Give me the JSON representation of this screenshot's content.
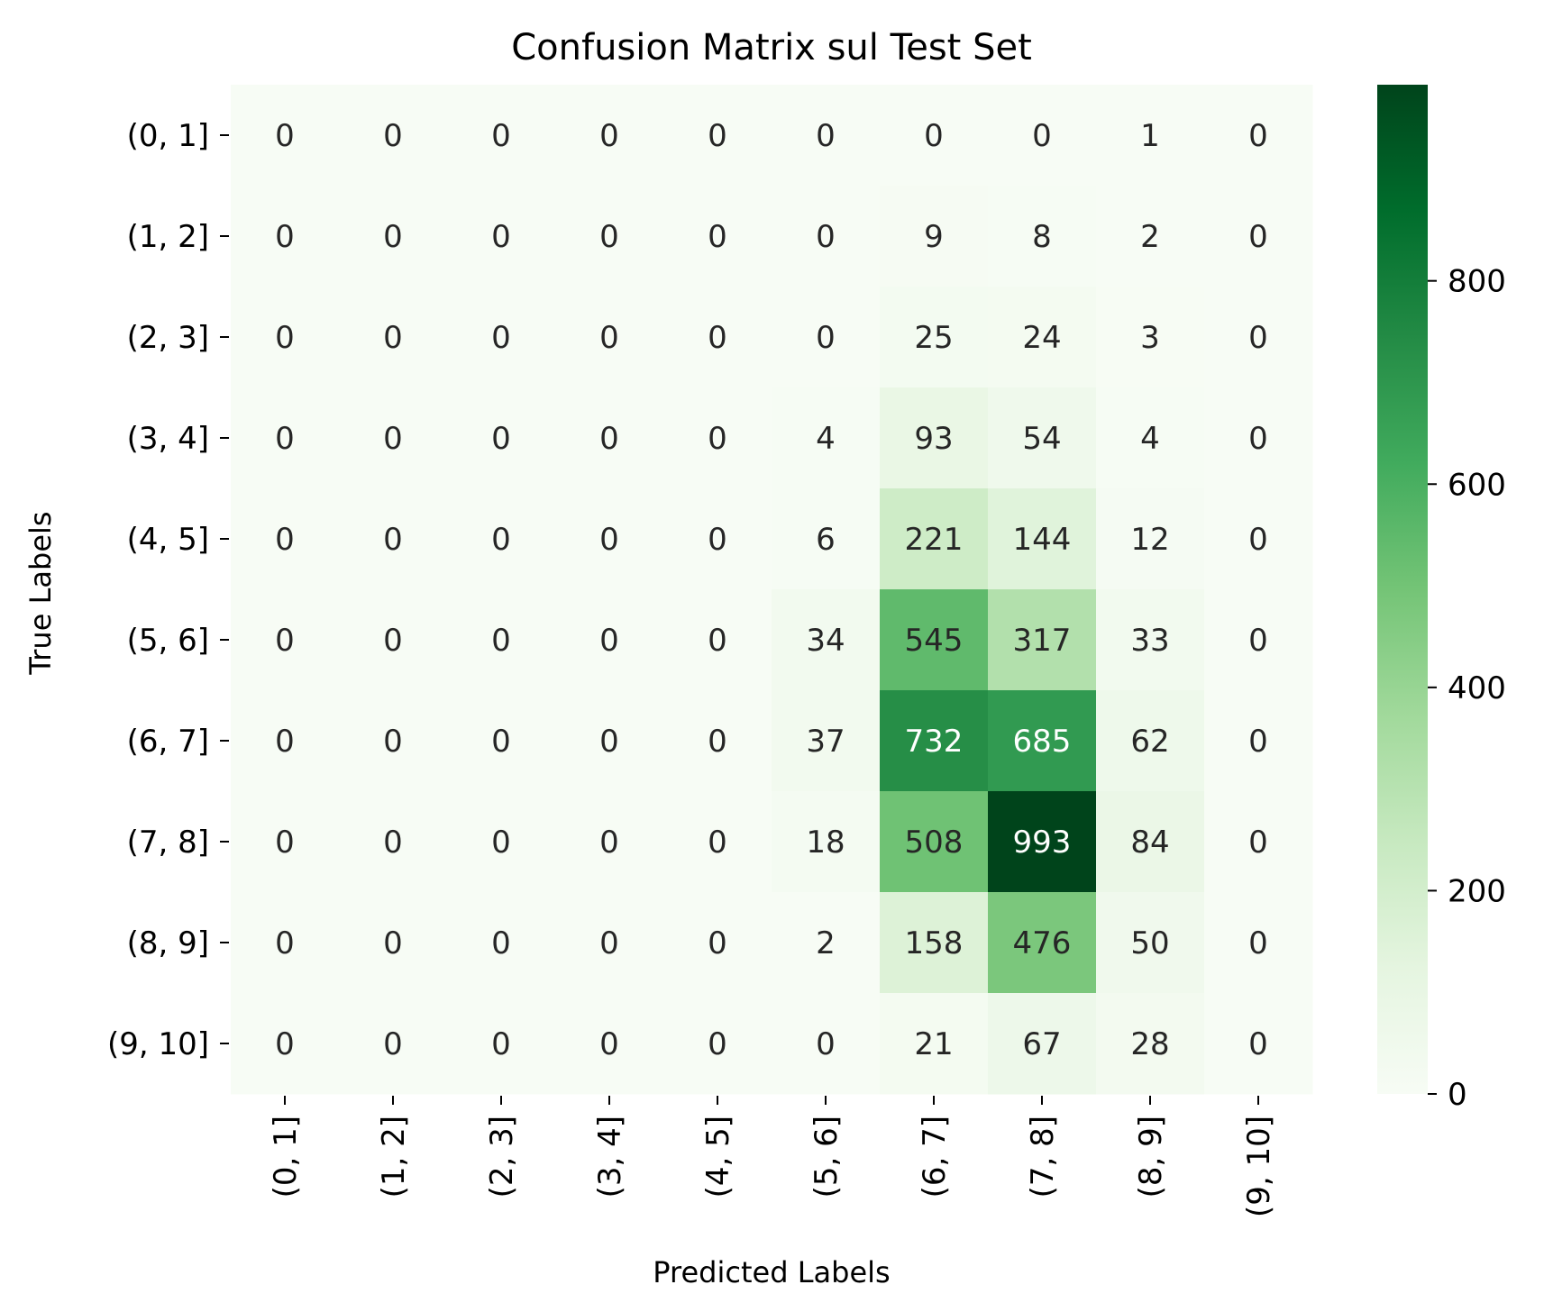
{
  "chart_data": {
    "type": "heatmap",
    "title": "Confusion Matrix sul Test Set",
    "xlabel": "Predicted Labels",
    "ylabel": "True Labels",
    "x_categories": [
      "(0, 1]",
      "(1, 2]",
      "(2, 3]",
      "(3, 4]",
      "(4, 5]",
      "(5, 6]",
      "(6, 7]",
      "(7, 8]",
      "(8, 9]",
      "(9, 10]"
    ],
    "y_categories": [
      "(0, 1]",
      "(1, 2]",
      "(2, 3]",
      "(3, 4]",
      "(4, 5]",
      "(5, 6]",
      "(6, 7]",
      "(7, 8]",
      "(8, 9]",
      "(9, 10]"
    ],
    "values": [
      [
        0,
        0,
        0,
        0,
        0,
        0,
        0,
        0,
        1,
        0
      ],
      [
        0,
        0,
        0,
        0,
        0,
        0,
        9,
        8,
        2,
        0
      ],
      [
        0,
        0,
        0,
        0,
        0,
        0,
        25,
        24,
        3,
        0
      ],
      [
        0,
        0,
        0,
        0,
        0,
        4,
        93,
        54,
        4,
        0
      ],
      [
        0,
        0,
        0,
        0,
        0,
        6,
        221,
        144,
        12,
        0
      ],
      [
        0,
        0,
        0,
        0,
        0,
        34,
        545,
        317,
        33,
        0
      ],
      [
        0,
        0,
        0,
        0,
        0,
        37,
        732,
        685,
        62,
        0
      ],
      [
        0,
        0,
        0,
        0,
        0,
        18,
        508,
        993,
        84,
        0
      ],
      [
        0,
        0,
        0,
        0,
        0,
        2,
        158,
        476,
        50,
        0
      ],
      [
        0,
        0,
        0,
        0,
        0,
        0,
        21,
        67,
        28,
        0
      ]
    ],
    "colorbar": {
      "min": 0,
      "max": 993,
      "ticks": [
        0,
        200,
        400,
        600,
        800
      ]
    },
    "colormap": "Greens",
    "colors": {
      "low": "#f7fcf5",
      "high": "#00441b",
      "text_dark": "#262626",
      "text_light": "#ffffff"
    },
    "grid": false
  }
}
